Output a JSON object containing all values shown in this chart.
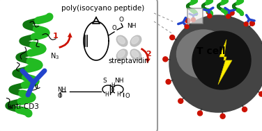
{
  "bg_color": "#ffffff",
  "box_linecolor": "#999999",
  "helix_color": "#22bb22",
  "helix_dark": "#117711",
  "antibody_color": "#2244cc",
  "cell_outer_color": "#666666",
  "cell_inner_color": "#222222",
  "cell_mid_color": "#888888",
  "lightning_color": "#ffee00",
  "red_color": "#cc1100",
  "red_dot": "#cc1100",
  "label_poly": "poly(isocyano peptide)",
  "label_strep": "streptavidin",
  "label_anti": "anti-CD3",
  "label_tcell": "T cell",
  "label_1": "1",
  "label_2": "2",
  "figsize": [
    3.76,
    1.89
  ],
  "dpi": 100
}
